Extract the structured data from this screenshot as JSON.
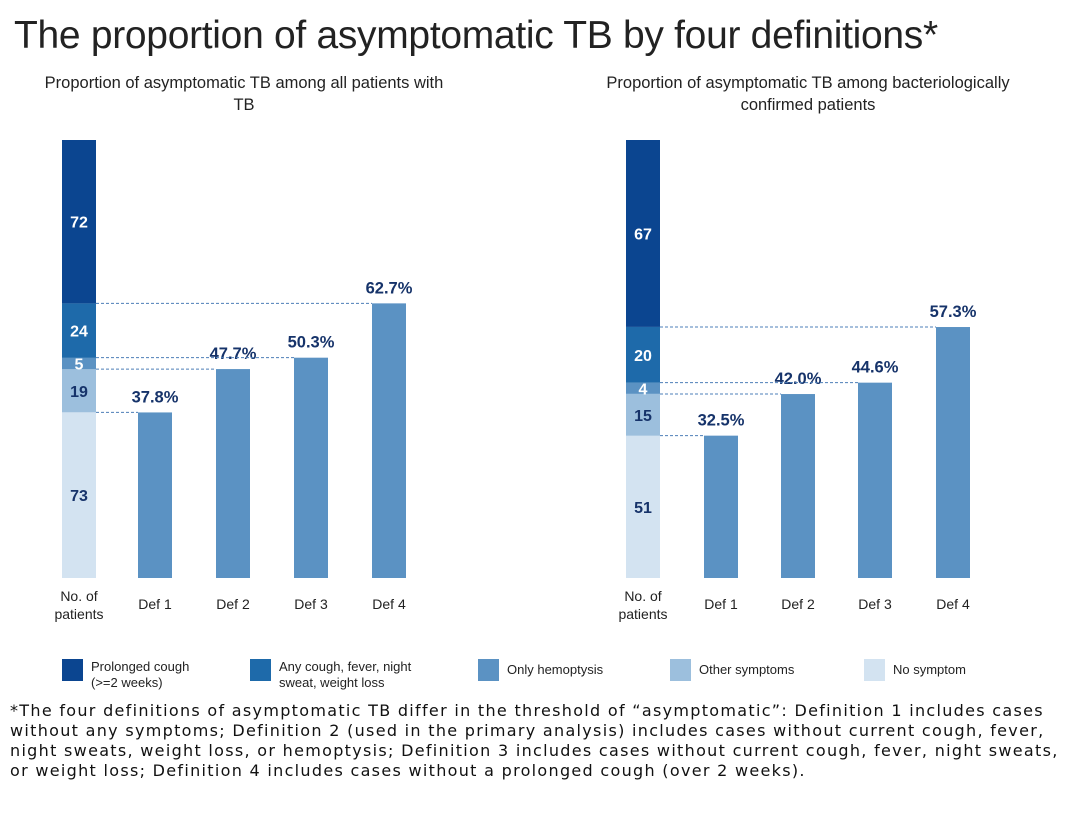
{
  "title": "The proportion of asymptomatic TB by four definitions*",
  "colors": {
    "prolonged_cough": "#0b4590",
    "any_cough": "#1e6aaa",
    "only_hemoptysis": "#5b92c3",
    "other_symptoms": "#9cbfdd",
    "no_symptom": "#d3e3f1",
    "value_label": "#16336a",
    "dashed_line": "#4d7fb8"
  },
  "legend": [
    {
      "label": "Prolonged cough (>=2 weeks)",
      "color_key": "prolonged_cough"
    },
    {
      "label": "Any cough, fever, night sweat, weight loss",
      "color_key": "any_cough"
    },
    {
      "label": "Only hemoptysis",
      "color_key": "only_hemoptysis"
    },
    {
      "label": "Other symptoms",
      "color_key": "other_symptoms"
    },
    {
      "label": "No symptom",
      "color_key": "no_symptom"
    }
  ],
  "footnote": "*The four definitions of asymptomatic TB differ in the threshold of “asymptomatic”: Definition 1 includes cases without any symptoms; Definition 2  (used in the primary analysis) includes cases without current cough, fever, night sweats, weight loss, or hemoptysis; Definition 3 includes cases without current cough, fever, night sweats, or weight loss; Definition 4 includes cases without a prolonged cough (over 2 weeks).",
  "chart_data": [
    {
      "type": "bar",
      "title": "Proportion of asymptomatic TB among all patients with TB",
      "stacked_bar": {
        "label": "No. of patients",
        "segments": [
          {
            "name": "No symptom",
            "value": 73
          },
          {
            "name": "Other symptoms",
            "value": 19
          },
          {
            "name": "Only hemoptysis",
            "value": 5
          },
          {
            "name": "Any cough, fever, night sweat, weight loss",
            "value": 24
          },
          {
            "name": "Prolonged cough (>=2 weeks)",
            "value": 72
          }
        ]
      },
      "categories": [
        "Def 1",
        "Def 2",
        "Def 3",
        "Def 4"
      ],
      "values": [
        37.8,
        47.7,
        50.3,
        62.7
      ],
      "value_labels": [
        "37.8%",
        "47.7%",
        "50.3%",
        "62.7%"
      ],
      "ylim": [
        0,
        100
      ]
    },
    {
      "type": "bar",
      "title": "Proportion of asymptomatic TB among bacteriologically confirmed patients",
      "stacked_bar": {
        "label": "No. of patients",
        "segments": [
          {
            "name": "No symptom",
            "value": 51
          },
          {
            "name": "Other symptoms",
            "value": 15
          },
          {
            "name": "Only hemoptysis",
            "value": 4
          },
          {
            "name": "Any cough, fever, night sweat, weight loss",
            "value": 20
          },
          {
            "name": "Prolonged cough (>=2 weeks)",
            "value": 67
          }
        ]
      },
      "categories": [
        "Def 1",
        "Def 2",
        "Def 3",
        "Def 4"
      ],
      "values": [
        32.5,
        42.0,
        44.6,
        57.3
      ],
      "value_labels": [
        "32.5%",
        "42.0%",
        "44.6%",
        "57.3%"
      ],
      "ylim": [
        0,
        100
      ]
    }
  ]
}
